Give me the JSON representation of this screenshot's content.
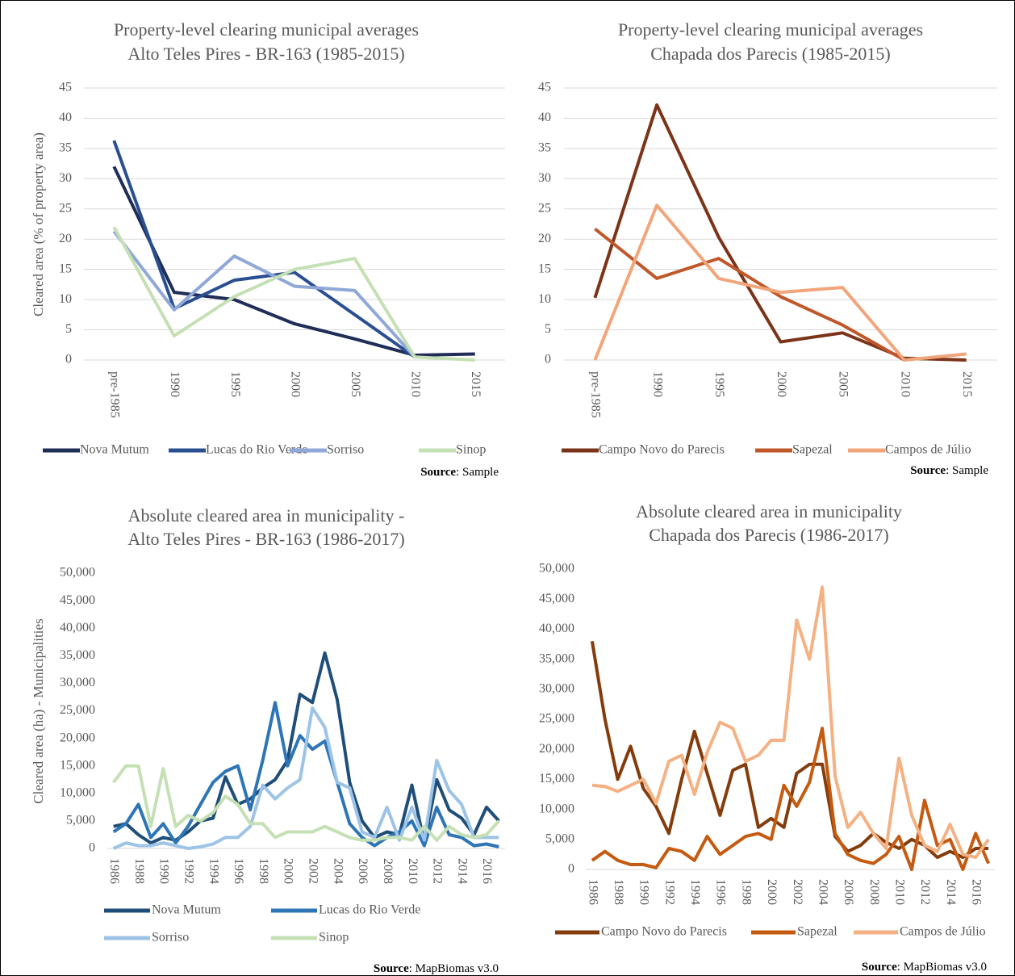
{
  "chart_data": [
    {
      "type": "line",
      "title": [
        "Property-level clearing municipal averages",
        "Alto Teles Pires - BR-163 (1985-2015)"
      ],
      "y_label": "Cleared area (% of property area)",
      "categories": [
        "pre-1985",
        "1990",
        "1995",
        "2000",
        "2005",
        "2010",
        "2015"
      ],
      "ylim": [
        0,
        45
      ],
      "yticks": [
        0,
        5,
        10,
        15,
        20,
        25,
        30,
        35,
        40,
        45
      ],
      "grid": true,
      "series": [
        {
          "name": "Nova Mutum",
          "color": "#1f2d57",
          "values": [
            32,
            11.2,
            10,
            6,
            3.5,
            0.8,
            1.0
          ]
        },
        {
          "name": "Lucas do Rio Verde",
          "color": "#2a4f91",
          "values": [
            36.3,
            8.5,
            13.2,
            14.5,
            7.5,
            0.5,
            null
          ]
        },
        {
          "name": "Sorriso",
          "color": "#8fa8d8",
          "values": [
            21.3,
            8.3,
            17.2,
            12.2,
            11.5,
            0.5,
            null
          ]
        },
        {
          "name": "Sinop",
          "color": "#c5e0b4",
          "values": [
            22,
            4,
            10.5,
            15,
            16.8,
            0.5,
            0
          ]
        }
      ],
      "source": {
        "label": "Source",
        "text": ": Sample"
      }
    },
    {
      "type": "line",
      "title": [
        "Property-level clearing municipal averages",
        "Chapada dos Parecis (1985-2015)"
      ],
      "categories": [
        "pre-1985",
        "1990",
        "1995",
        "2000",
        "2005",
        "2010",
        "2015"
      ],
      "ylim": [
        0,
        45
      ],
      "yticks": [
        0,
        5,
        10,
        15,
        20,
        25,
        30,
        35,
        40,
        45
      ],
      "grid": true,
      "series": [
        {
          "name": "Campo Novo do Parecis",
          "color": "#7b3418",
          "values": [
            10.3,
            42.2,
            20.3,
            3,
            4.5,
            0.3,
            0
          ]
        },
        {
          "name": "Sapezal",
          "color": "#c0572a",
          "values": [
            21.7,
            13.5,
            16.8,
            10.5,
            5.8,
            0,
            null
          ]
        },
        {
          "name": "Campos de Júlio",
          "color": "#f0a67a",
          "values": [
            0,
            25.6,
            13.5,
            11.2,
            12,
            0,
            1.0
          ]
        }
      ],
      "source": {
        "label": "Source",
        "text": ": Sample"
      }
    },
    {
      "type": "line",
      "title": [
        "Absolute cleared area in municipality -",
        "Alto Teles Pires - BR-163 (1986-2017)"
      ],
      "y_label": "Cleared area (ha) - Municipalities",
      "categories": [
        "1986",
        null,
        "1988",
        null,
        "1990",
        null,
        "1992",
        null,
        "1994",
        null,
        "1996",
        null,
        "1998",
        null,
        "2000",
        null,
        "2002",
        null,
        "2004",
        null,
        "2006",
        null,
        "2008",
        null,
        "2010",
        null,
        "2012",
        null,
        "2014",
        null,
        "2016",
        null
      ],
      "ylim": [
        0,
        50000
      ],
      "yticks": [
        0,
        {
          "value": 5000,
          "label": "5,000"
        },
        {
          "value": 10000,
          "label": "10,000"
        },
        {
          "value": 15000,
          "label": "15,000"
        },
        {
          "value": 20000,
          "label": "20,000"
        },
        {
          "value": 25000,
          "label": "25,000"
        },
        {
          "value": 30000,
          "label": "30,000"
        },
        {
          "value": 35000,
          "label": "35,000"
        },
        {
          "value": 40000,
          "label": "40,000"
        },
        {
          "value": 45000,
          "label": "45,000"
        },
        {
          "value": 50000,
          "label": "50,000"
        }
      ],
      "grid": false,
      "series": [
        {
          "name": "Nova Mutum",
          "color": "#1f4e79",
          "values": [
            4000,
            4500,
            2500,
            1000,
            2000,
            1500,
            3000,
            5000,
            5500,
            13000,
            8000,
            9000,
            11000,
            12500,
            16000,
            28000,
            26500,
            35500,
            27000,
            12000,
            5000,
            2000,
            3000,
            2500,
            11500,
            1000,
            12500,
            7000,
            5500,
            2500,
            7500,
            5000
          ]
        },
        {
          "name": "Lucas do Rio Verde",
          "color": "#2e75b6",
          "values": [
            3000,
            4500,
            8000,
            2000,
            4500,
            1000,
            4000,
            8000,
            12000,
            14000,
            15000,
            7000,
            16000,
            26500,
            15000,
            20500,
            18000,
            19500,
            12000,
            4500,
            2000,
            500,
            2000,
            3000,
            5000,
            500,
            7500,
            2500,
            2000,
            500,
            800,
            300
          ]
        },
        {
          "name": "Sorriso",
          "color": "#9dc3e6",
          "values": [
            0,
            1000,
            500,
            500,
            1000,
            500,
            0,
            300,
            800,
            2000,
            2000,
            4000,
            11500,
            9000,
            11000,
            12500,
            25500,
            22000,
            12000,
            11000,
            3000,
            2000,
            7500,
            1500,
            7500,
            1500,
            16000,
            10500,
            8000,
            2000,
            2000,
            2000
          ]
        },
        {
          "name": "Sinop",
          "color": "#c5e0b4",
          "values": [
            12000,
            15000,
            15000,
            4000,
            14500,
            4000,
            6000,
            5000,
            6500,
            9500,
            8000,
            4500,
            4500,
            2000,
            3000,
            3000,
            3000,
            4000,
            3000,
            2000,
            1500,
            1500,
            2000,
            2000,
            1500,
            4000,
            1500,
            4000,
            2500,
            2000,
            2500,
            5000
          ]
        }
      ],
      "source": {
        "label": "Source",
        "text": ": MapBiomas v3.0"
      }
    },
    {
      "type": "line",
      "title": [
        "Absolute cleared area in municipality",
        "Chapada dos Parecis (1986-2017)"
      ],
      "categories": [
        "1986",
        null,
        "1988",
        null,
        "1990",
        null,
        "1992",
        null,
        "1994",
        null,
        "1996",
        null,
        "1998",
        null,
        "2000",
        null,
        "2002",
        null,
        "2004",
        null,
        "2006",
        null,
        "2008",
        null,
        "2010",
        null,
        "2012",
        null,
        "2014",
        null,
        "2016",
        null
      ],
      "ylim": [
        0,
        50000
      ],
      "yticks": [
        0,
        {
          "value": 5000,
          "label": "5,000"
        },
        {
          "value": 10000,
          "label": "10,000"
        },
        {
          "value": 15000,
          "label": "15,000"
        },
        {
          "value": 20000,
          "label": "20,000"
        },
        {
          "value": 25000,
          "label": "25,000"
        },
        {
          "value": 30000,
          "label": "30,000"
        },
        {
          "value": 35000,
          "label": "35,000"
        },
        {
          "value": 40000,
          "label": "40,000"
        },
        {
          "value": 45000,
          "label": "45,000"
        },
        {
          "value": 50000,
          "label": "50,000"
        }
      ],
      "grid": false,
      "series": [
        {
          "name": "Campo Novo do Parecis",
          "color": "#843c0c",
          "values": [
            38000,
            25000,
            15000,
            20500,
            13500,
            10500,
            6000,
            15000,
            23000,
            16000,
            9000,
            16500,
            17500,
            7000,
            8500,
            7000,
            16000,
            17500,
            17500,
            5500,
            3000,
            4000,
            6000,
            4500,
            3500,
            5000,
            4000,
            2000,
            3000,
            2000,
            3500,
            3500
          ]
        },
        {
          "name": "Sapezal",
          "color": "#c55a11",
          "values": [
            1500,
            3000,
            1500,
            800,
            800,
            300,
            3500,
            3000,
            1500,
            5500,
            2500,
            4000,
            5500,
            6000,
            5000,
            14000,
            10500,
            14500,
            23500,
            6000,
            2500,
            1500,
            1000,
            2500,
            5500,
            0,
            11500,
            4000,
            5000,
            0,
            6000,
            1000
          ]
        },
        {
          "name": "Campos de Júlio",
          "color": "#f4b183",
          "values": [
            14000,
            13800,
            13000,
            14000,
            15000,
            11000,
            18000,
            19000,
            12500,
            19500,
            24500,
            23500,
            18000,
            19000,
            21500,
            21500,
            41500,
            35000,
            47000,
            15500,
            7000,
            9500,
            6000,
            3500,
            18500,
            9000,
            4000,
            3000,
            7500,
            2500,
            2000,
            5000
          ]
        }
      ],
      "source": {
        "label": "Source",
        "text": ": MapBiomas v3.0"
      }
    }
  ]
}
